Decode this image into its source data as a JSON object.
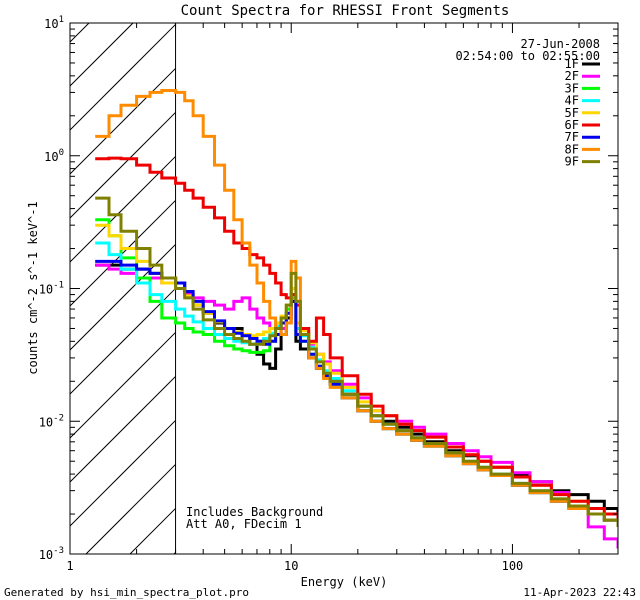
{
  "chart_data": {
    "type": "line",
    "title": "Count Spectra for RHESSI Front Segments",
    "xlabel": "Energy (keV)",
    "ylabel": "counts cm^-2 s^-1 keV^-1",
    "xscale": "log",
    "yscale": "log",
    "xlim": [
      1,
      300
    ],
    "ylim": [
      0.001,
      10
    ],
    "x_ticks": [
      {
        "value": 1,
        "label": "1"
      },
      {
        "value": 10,
        "label": "10"
      },
      {
        "value": 100,
        "label": "100"
      }
    ],
    "y_ticks": [
      {
        "value": 0.001,
        "base": "10",
        "exp": "-3"
      },
      {
        "value": 0.01,
        "base": "10",
        "exp": "-2"
      },
      {
        "value": 0.1,
        "base": "10",
        "exp": "-1"
      },
      {
        "value": 1,
        "base": "10",
        "exp": "0"
      },
      {
        "value": 10,
        "base": "10",
        "exp": "1"
      }
    ],
    "hatched_region": {
      "x_from": 1,
      "x_to": 3
    },
    "header": {
      "date": "27-Jun-2008",
      "time_range": "02:54:00 to 02:55:00"
    },
    "notes": [
      "Includes Background",
      "Att A0, FDecim 1"
    ],
    "x": [
      1.3,
      1.5,
      1.7,
      2.0,
      2.3,
      2.6,
      3.0,
      3.3,
      3.6,
      4.0,
      4.5,
      5.0,
      5.5,
      6.0,
      6.5,
      7.0,
      7.5,
      8.0,
      8.5,
      9.0,
      9.5,
      10.0,
      10.5,
      11.0,
      12.0,
      13.0,
      14.0,
      15.0,
      17.0,
      20.0,
      23.0,
      26.0,
      30.0,
      35.0,
      40.0,
      50.0,
      60.0,
      70.0,
      80.0,
      100.0,
      120.0,
      150.0,
      180.0,
      220.0,
      260.0,
      300.0
    ],
    "series": [
      {
        "name": "1F",
        "color": "#000000",
        "values": [
          0.15,
          0.15,
          0.14,
          0.14,
          0.13,
          0.12,
          0.11,
          0.09,
          0.075,
          0.065,
          0.055,
          0.05,
          0.05,
          0.045,
          0.038,
          0.032,
          0.027,
          0.025,
          0.035,
          0.045,
          0.06,
          0.08,
          0.04,
          0.035,
          0.03,
          0.025,
          0.022,
          0.02,
          0.016,
          0.013,
          0.011,
          0.01,
          0.009,
          0.008,
          0.007,
          0.006,
          0.0055,
          0.005,
          0.0045,
          0.004,
          0.0035,
          0.003,
          0.0028,
          0.0025,
          0.0022,
          0.002
        ]
      },
      {
        "name": "2F",
        "color": "#ff00ff",
        "values": [
          0.15,
          0.14,
          0.13,
          0.12,
          0.12,
          0.11,
          0.1,
          0.09,
          0.085,
          0.08,
          0.075,
          0.07,
          0.08,
          0.085,
          0.07,
          0.06,
          0.055,
          0.05,
          0.05,
          0.05,
          0.055,
          0.09,
          0.05,
          0.045,
          0.038,
          0.032,
          0.028,
          0.024,
          0.019,
          0.015,
          0.012,
          0.011,
          0.01,
          0.009,
          0.008,
          0.0068,
          0.006,
          0.0054,
          0.0049,
          0.0041,
          0.0035,
          0.0029,
          0.0022,
          0.0016,
          0.0013,
          0.0011
        ]
      },
      {
        "name": "3F",
        "color": "#00ff00",
        "values": [
          0.33,
          0.25,
          0.17,
          0.12,
          0.08,
          0.06,
          0.055,
          0.05,
          0.047,
          0.045,
          0.04,
          0.037,
          0.035,
          0.034,
          0.033,
          0.033,
          0.034,
          0.04,
          0.05,
          0.06,
          0.07,
          0.085,
          0.045,
          0.04,
          0.032,
          0.026,
          0.022,
          0.019,
          0.015,
          0.012,
          0.01,
          0.0088,
          0.008,
          0.0072,
          0.0065,
          0.0055,
          0.0048,
          0.0043,
          0.0039,
          0.0033,
          0.0029,
          0.0025,
          0.0022,
          0.002,
          0.0018,
          0.0016
        ]
      },
      {
        "name": "4F",
        "color": "#00ffff",
        "values": [
          0.22,
          0.18,
          0.14,
          0.11,
          0.09,
          0.08,
          0.07,
          0.062,
          0.056,
          0.05,
          0.045,
          0.042,
          0.04,
          0.039,
          0.038,
          0.04,
          0.042,
          0.046,
          0.052,
          0.06,
          0.075,
          0.09,
          0.05,
          0.044,
          0.036,
          0.029,
          0.024,
          0.021,
          0.017,
          0.013,
          0.011,
          0.0095,
          0.0085,
          0.0075,
          0.0068,
          0.0058,
          0.005,
          0.0045,
          0.004,
          0.0034,
          0.003,
          0.0026,
          0.0023,
          0.002,
          0.0018,
          0.0016
        ]
      },
      {
        "name": "5F",
        "color": "#ffd700",
        "values": [
          0.3,
          0.25,
          0.2,
          0.16,
          0.13,
          0.11,
          0.1,
          0.088,
          0.075,
          0.065,
          0.056,
          0.05,
          0.047,
          0.045,
          0.044,
          0.045,
          0.047,
          0.05,
          0.055,
          0.062,
          0.075,
          0.1,
          0.055,
          0.048,
          0.039,
          0.032,
          0.027,
          0.023,
          0.018,
          0.014,
          0.012,
          0.011,
          0.0095,
          0.0085,
          0.0076,
          0.0064,
          0.0056,
          0.005,
          0.0045,
          0.0038,
          0.0033,
          0.0028,
          0.0025,
          0.0022,
          0.002,
          0.0018
        ]
      },
      {
        "name": "6F",
        "color": "#ee0000",
        "values": [
          0.95,
          0.96,
          0.95,
          0.85,
          0.75,
          0.68,
          0.62,
          0.55,
          0.48,
          0.41,
          0.34,
          0.27,
          0.22,
          0.2,
          0.18,
          0.17,
          0.15,
          0.13,
          0.11,
          0.09,
          0.085,
          0.09,
          0.075,
          0.05,
          0.04,
          0.06,
          0.045,
          0.03,
          0.022,
          0.016,
          0.013,
          0.011,
          0.0095,
          0.0085,
          0.0076,
          0.0064,
          0.0056,
          0.005,
          0.0045,
          0.0038,
          0.0033,
          0.0028,
          0.0025,
          0.0022,
          0.002,
          0.0018
        ]
      },
      {
        "name": "7F",
        "color": "#0000ee",
        "values": [
          0.16,
          0.16,
          0.15,
          0.14,
          0.13,
          0.12,
          0.11,
          0.095,
          0.08,
          0.067,
          0.057,
          0.05,
          0.046,
          0.044,
          0.042,
          0.04,
          0.038,
          0.04,
          0.045,
          0.055,
          0.065,
          0.08,
          0.045,
          0.04,
          0.032,
          0.026,
          0.022,
          0.019,
          0.015,
          0.012,
          0.01,
          0.0088,
          0.008,
          0.0072,
          0.0065,
          0.0055,
          0.0048,
          0.0043,
          0.0039,
          0.0033,
          0.0029,
          0.0025,
          0.0022,
          0.002,
          0.0018,
          0.0016
        ]
      },
      {
        "name": "8F",
        "color": "#ff8c00",
        "values": [
          1.4,
          2.0,
          2.4,
          2.8,
          3.0,
          3.1,
          3.0,
          2.6,
          2.0,
          1.4,
          0.85,
          0.55,
          0.33,
          0.22,
          0.15,
          0.11,
          0.08,
          0.06,
          0.05,
          0.045,
          0.055,
          0.16,
          0.12,
          0.045,
          0.03,
          0.025,
          0.021,
          0.018,
          0.015,
          0.012,
          0.01,
          0.0088,
          0.008,
          0.0072,
          0.0065,
          0.0055,
          0.0048,
          0.0043,
          0.0039,
          0.0033,
          0.0029,
          0.0025,
          0.0022,
          0.002,
          0.0018,
          0.0016
        ]
      },
      {
        "name": "9F",
        "color": "#808000",
        "values": [
          0.48,
          0.36,
          0.27,
          0.2,
          0.15,
          0.12,
          0.1,
          0.085,
          0.07,
          0.058,
          0.05,
          0.045,
          0.042,
          0.04,
          0.038,
          0.038,
          0.04,
          0.044,
          0.05,
          0.06,
          0.075,
          0.13,
          0.08,
          0.045,
          0.035,
          0.028,
          0.023,
          0.02,
          0.016,
          0.013,
          0.011,
          0.0095,
          0.0085,
          0.0075,
          0.0068,
          0.0058,
          0.005,
          0.0045,
          0.004,
          0.0034,
          0.003,
          0.0026,
          0.0023,
          0.002,
          0.0018,
          0.0016
        ]
      }
    ]
  },
  "footer": {
    "generated_by": "Generated by hsi_min_spectra_plot.pro",
    "timestamp": "11-Apr-2023 22:43"
  }
}
